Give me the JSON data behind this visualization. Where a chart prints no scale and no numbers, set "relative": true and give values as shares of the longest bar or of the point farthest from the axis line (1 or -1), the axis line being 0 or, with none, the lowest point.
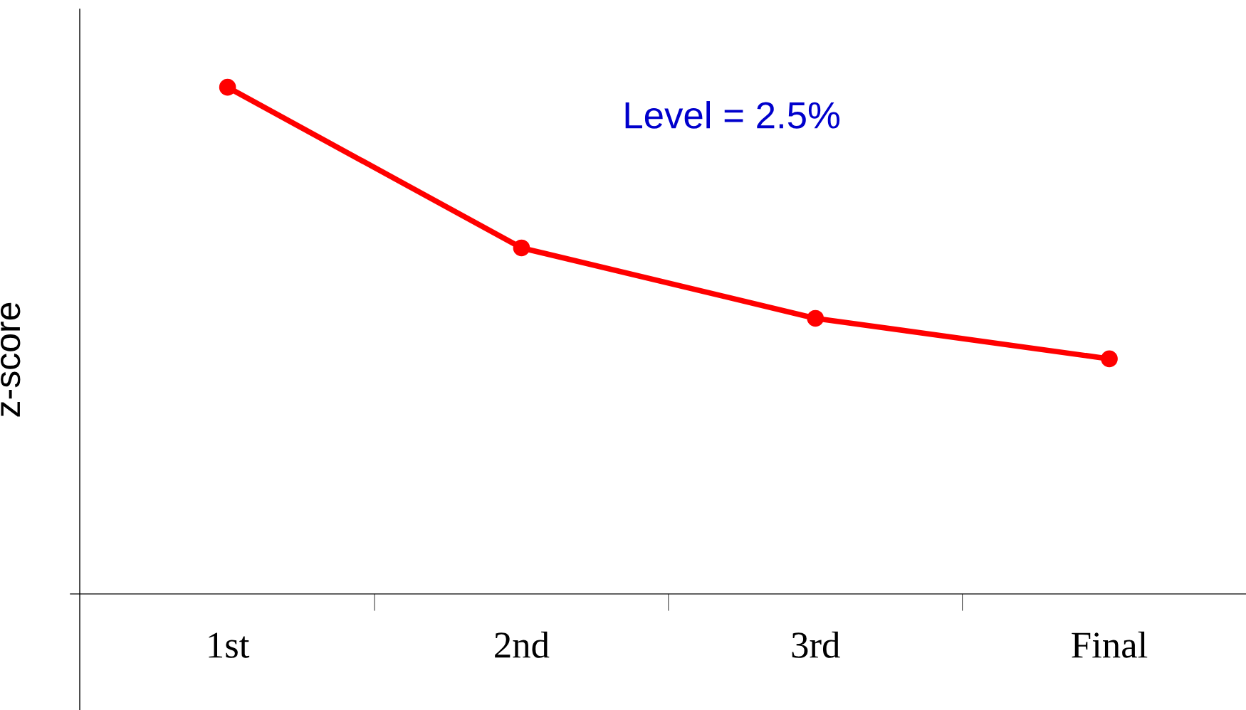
{
  "chart_data": {
    "type": "line",
    "relative": true,
    "ylabel": "z-score",
    "categories": [
      "1st",
      "2nd",
      "3rd",
      "Final"
    ],
    "series": [
      {
        "color": "#ff0000",
        "values": [
          1,
          0.683,
          0.544,
          0.464
        ]
      }
    ],
    "marker": "circle",
    "line_style": "solid",
    "grid": false,
    "legend": false,
    "annotations": [
      "Level = 2.5%"
    ],
    "tick_labels": "x"
  }
}
